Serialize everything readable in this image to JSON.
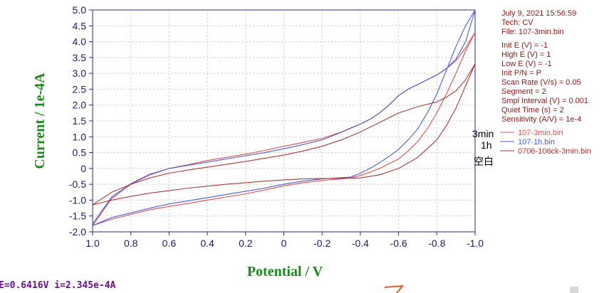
{
  "chart_data": {
    "type": "line",
    "title": "",
    "xlabel": "Potential / V",
    "ylabel": "Current / 1e-4A",
    "xlim": [
      1.0,
      -1.0
    ],
    "ylim": [
      -2.0,
      5.0
    ],
    "x_ticks": [
      "1.0",
      "0.8",
      "0.6",
      "0.4",
      "0.2",
      "0",
      "-0.2",
      "-0.4",
      "-0.6",
      "-0.8",
      "-1.0"
    ],
    "y_ticks": [
      "5.0",
      "4.5",
      "4.0",
      "3.5",
      "3.0",
      "2.5",
      "2.0",
      "1.5",
      "1.0",
      "0.5",
      "0",
      "-0.5",
      "-1.0",
      "-1.5",
      "-2.0"
    ],
    "grid": true,
    "legend_position": "right",
    "series": [
      {
        "name": "107-3min.bin",
        "color": "#e05050",
        "x": [
          1.0,
          0.9,
          0.8,
          0.7,
          0.6,
          0.5,
          0.4,
          0.3,
          0.2,
          0.1,
          0.0,
          -0.1,
          -0.2,
          -0.3,
          -0.35,
          -0.4,
          -0.45,
          -0.5,
          -0.55,
          -0.6,
          -0.65,
          -0.7,
          -0.75,
          -0.8,
          -0.85,
          -0.9,
          -0.95,
          -1.0,
          -1.0,
          -0.95,
          -0.9,
          -0.85,
          -0.8,
          -0.75,
          -0.7,
          -0.65,
          -0.6,
          -0.55,
          -0.5,
          -0.45,
          -0.4,
          -0.35,
          -0.3,
          -0.25,
          -0.2,
          -0.1,
          0.0,
          0.1,
          0.2,
          0.3,
          0.4,
          0.5,
          0.6,
          0.7,
          0.8,
          0.9,
          1.0
        ],
        "y": [
          -1.8,
          -1.6,
          -1.45,
          -1.3,
          -1.2,
          -1.1,
          -1.0,
          -0.9,
          -0.8,
          -0.68,
          -0.55,
          -0.45,
          -0.38,
          -0.33,
          -0.3,
          -0.22,
          -0.12,
          0.0,
          0.15,
          0.3,
          0.55,
          0.85,
          1.25,
          1.75,
          2.35,
          3.0,
          3.7,
          4.3,
          4.3,
          3.8,
          3.4,
          3.15,
          2.95,
          2.8,
          2.65,
          2.5,
          2.3,
          2.0,
          1.75,
          1.55,
          1.4,
          1.28,
          1.15,
          1.05,
          0.95,
          0.82,
          0.7,
          0.57,
          0.45,
          0.35,
          0.25,
          0.12,
          0.0,
          -0.2,
          -0.5,
          -0.95,
          -1.8
        ]
      },
      {
        "name": "107-1h.bin",
        "color": "#4a5ae0",
        "x": [
          1.0,
          0.9,
          0.8,
          0.7,
          0.6,
          0.5,
          0.4,
          0.3,
          0.2,
          0.1,
          0.0,
          -0.1,
          -0.2,
          -0.3,
          -0.35,
          -0.4,
          -0.45,
          -0.5,
          -0.55,
          -0.6,
          -0.65,
          -0.7,
          -0.75,
          -0.8,
          -0.85,
          -0.9,
          -0.95,
          -1.0,
          -1.0,
          -0.95,
          -0.9,
          -0.85,
          -0.8,
          -0.75,
          -0.7,
          -0.65,
          -0.6,
          -0.55,
          -0.5,
          -0.45,
          -0.4,
          -0.35,
          -0.3,
          -0.25,
          -0.2,
          -0.1,
          0.0,
          0.1,
          0.2,
          0.3,
          0.4,
          0.5,
          0.6,
          0.7,
          0.8,
          0.9,
          1.0
        ],
        "y": [
          -1.8,
          -1.55,
          -1.4,
          -1.25,
          -1.12,
          -1.02,
          -0.92,
          -0.82,
          -0.72,
          -0.62,
          -0.5,
          -0.4,
          -0.33,
          -0.29,
          -0.27,
          -0.15,
          0.0,
          0.18,
          0.38,
          0.6,
          0.9,
          1.25,
          1.75,
          2.35,
          3.1,
          3.85,
          4.5,
          5.0,
          5.0,
          4.0,
          3.45,
          3.15,
          2.95,
          2.8,
          2.65,
          2.5,
          2.3,
          2.0,
          1.75,
          1.55,
          1.4,
          1.27,
          1.14,
          1.02,
          0.9,
          0.75,
          0.62,
          0.5,
          0.4,
          0.3,
          0.2,
          0.1,
          0.0,
          -0.18,
          -0.48,
          -0.9,
          -1.75
        ]
      },
      {
        "name": "0706-108ck-3min.bin",
        "color": "#a83a3a",
        "x": [
          1.0,
          0.9,
          0.8,
          0.7,
          0.6,
          0.5,
          0.4,
          0.3,
          0.2,
          0.1,
          0.0,
          -0.1,
          -0.2,
          -0.3,
          -0.4,
          -0.5,
          -0.6,
          -0.7,
          -0.8,
          -0.85,
          -0.9,
          -0.95,
          -1.0,
          -1.0,
          -0.95,
          -0.9,
          -0.85,
          -0.8,
          -0.7,
          -0.6,
          -0.5,
          -0.4,
          -0.3,
          -0.2,
          -0.1,
          0.0,
          0.1,
          0.2,
          0.3,
          0.4,
          0.5,
          0.6,
          0.7,
          0.8,
          0.9,
          1.0
        ],
        "y": [
          -1.15,
          -1.0,
          -0.88,
          -0.78,
          -0.7,
          -0.62,
          -0.56,
          -0.5,
          -0.45,
          -0.4,
          -0.36,
          -0.33,
          -0.32,
          -0.31,
          -0.3,
          -0.2,
          0.0,
          0.35,
          0.9,
          1.35,
          1.9,
          2.6,
          3.3,
          3.3,
          2.8,
          2.45,
          2.25,
          2.1,
          1.95,
          1.75,
          1.45,
          1.15,
          0.9,
          0.7,
          0.55,
          0.42,
          0.32,
          0.22,
          0.13,
          0.04,
          -0.05,
          -0.15,
          -0.3,
          -0.5,
          -0.75,
          -1.15
        ]
      }
    ]
  },
  "info_lines": [
    "July 9, 2021   15:56:59",
    "Tech: CV",
    "File: 107-3min.bin",
    "Init E (V) = -1",
    "High E (V) = 1",
    "Low E (V) = -1",
    "Init P/N = P",
    "Scan Rate (V/s) = 0.05",
    "Segment = 2",
    "Smpl Interval (V) = 0.001",
    "Quiet Time (s) = 2",
    "Sensitivity (A/V) = 1e-4"
  ],
  "annotations": [
    "3min",
    "1h",
    "空白"
  ],
  "status_bar": "E=0.6416V  i=2.345e-4A"
}
